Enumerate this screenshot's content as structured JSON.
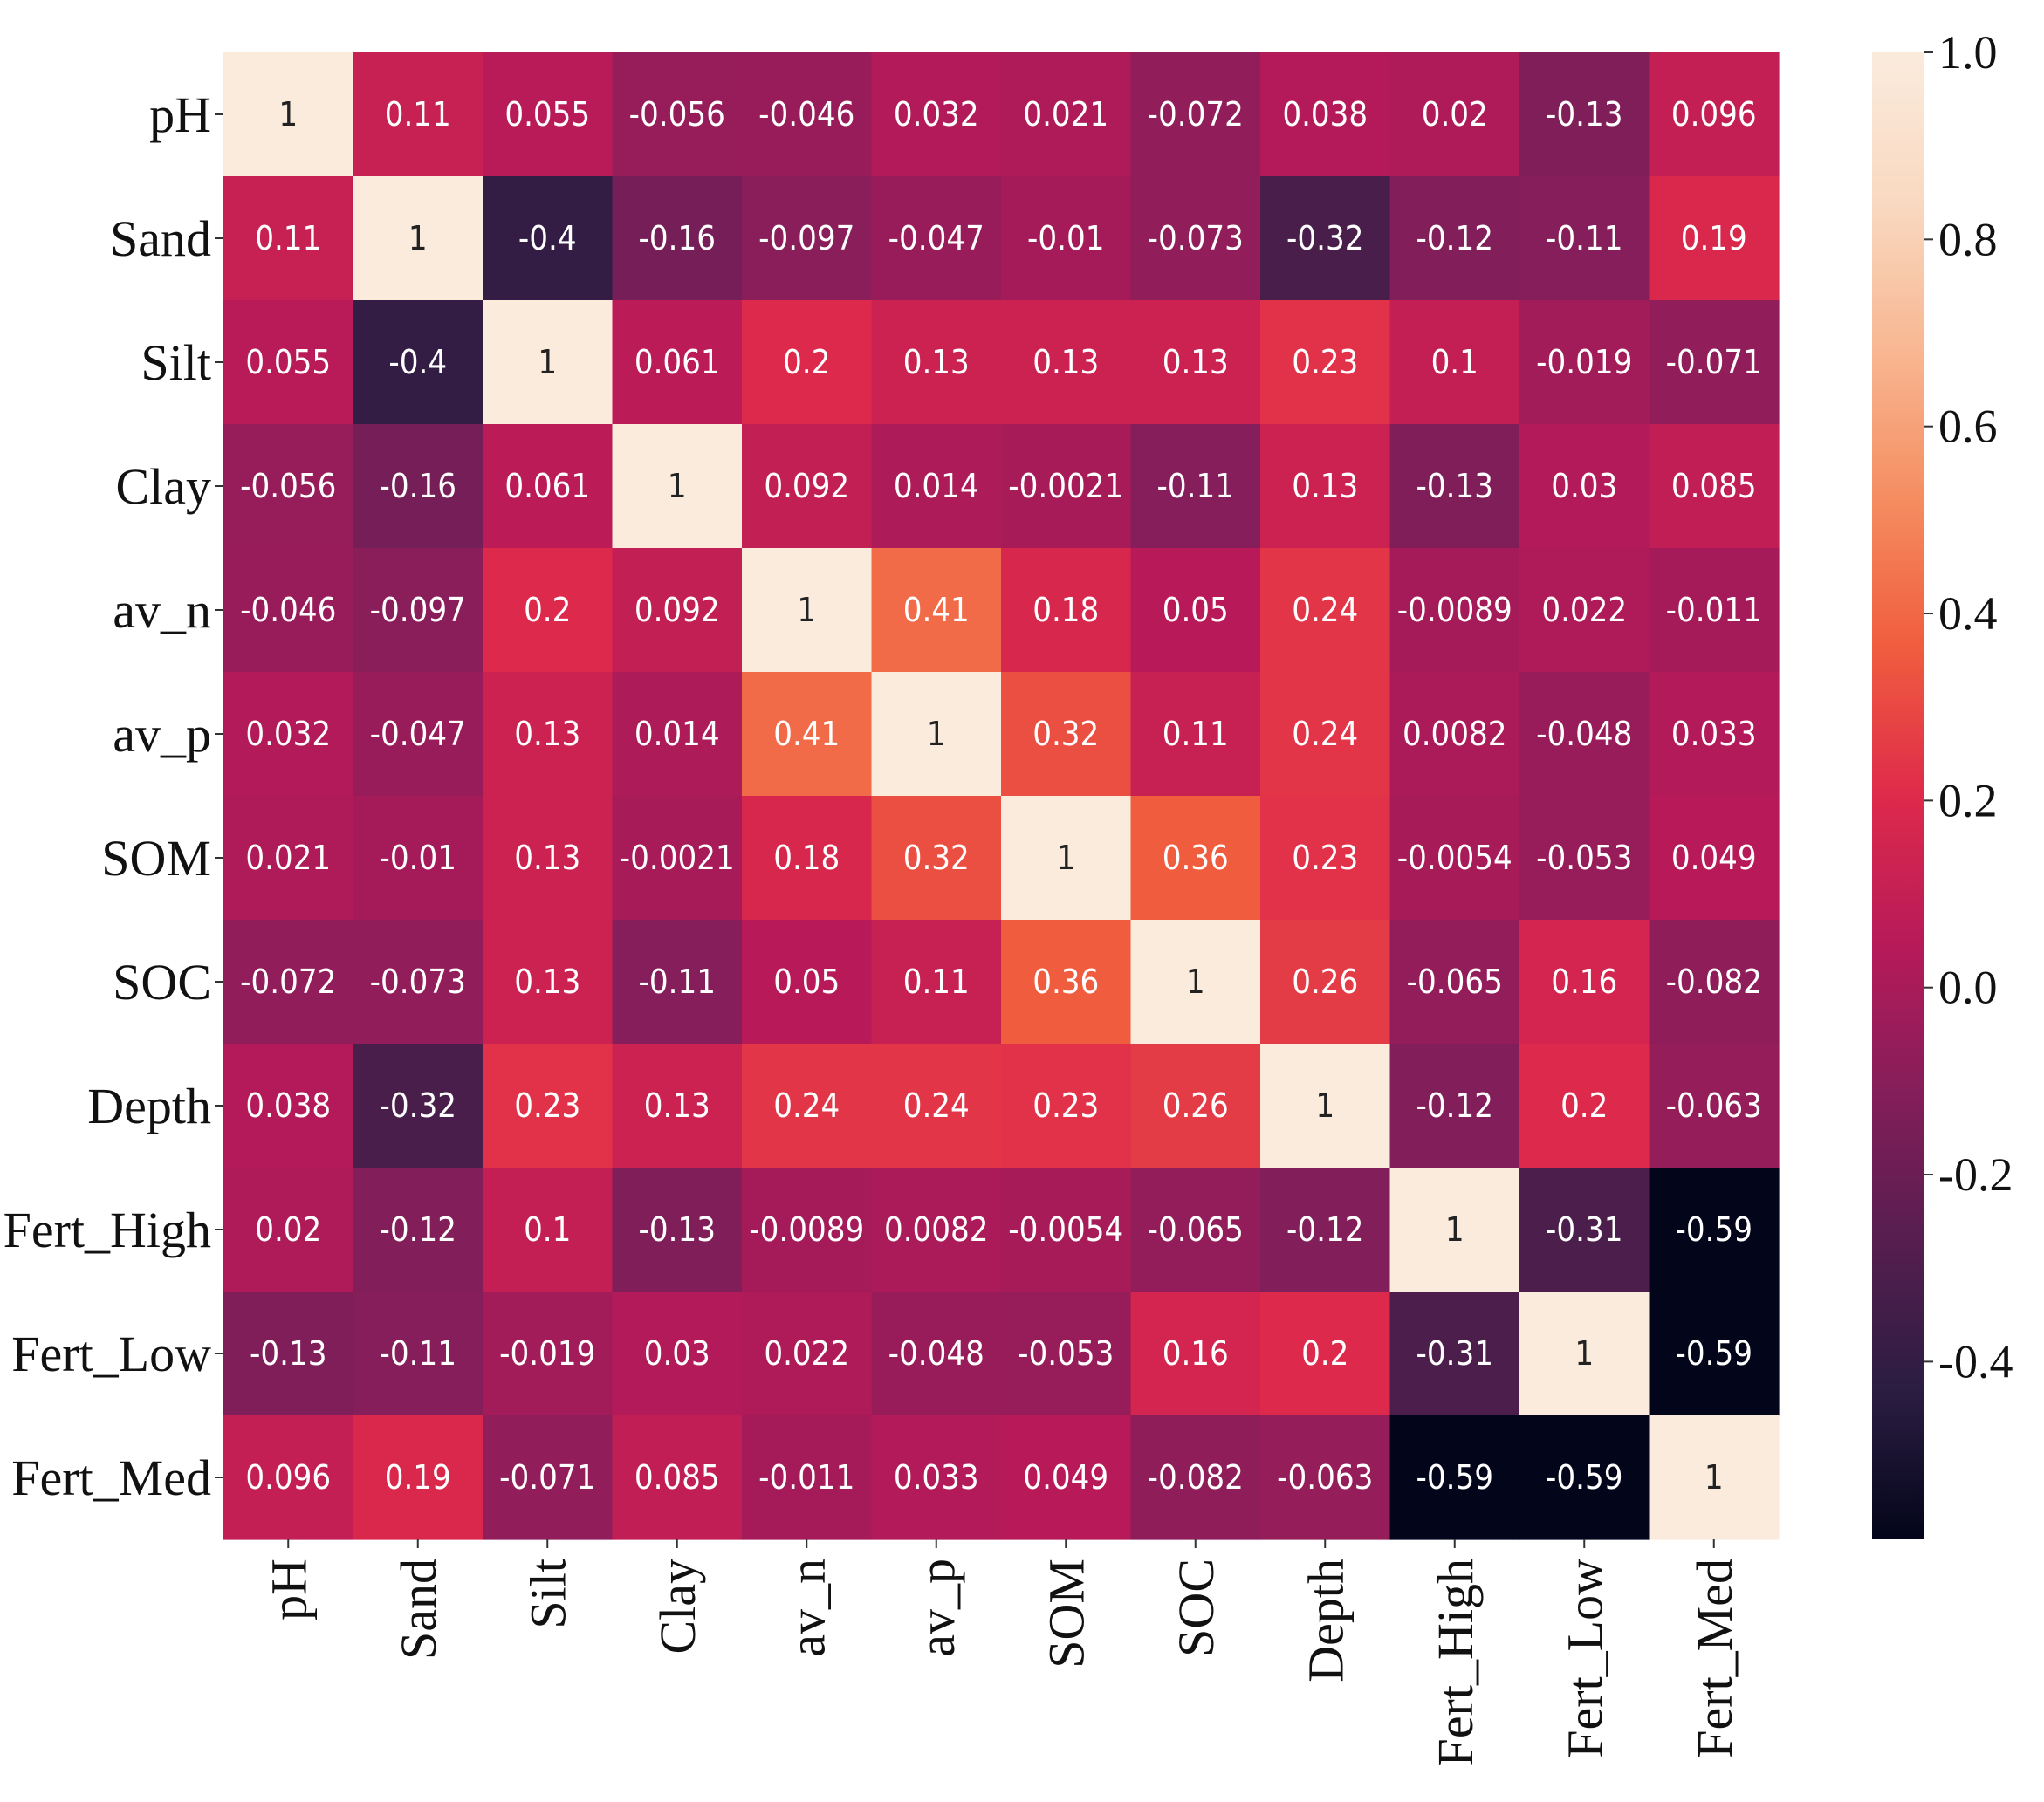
{
  "chart_data": {
    "type": "heatmap",
    "title": "",
    "xlabel": "",
    "ylabel": "",
    "labels": [
      "pH",
      "Sand",
      "Silt",
      "Clay",
      "av_n",
      "av_p",
      "SOM",
      "SOC",
      "Depth",
      "Fert_High",
      "Fert_Low",
      "Fert_Med"
    ],
    "values": [
      [
        "1",
        "0.11",
        "0.055",
        "-0.056",
        "-0.046",
        "0.032",
        "0.021",
        "-0.072",
        "0.038",
        "0.02",
        "-0.13",
        "0.096"
      ],
      [
        "0.11",
        "1",
        "-0.4",
        "-0.16",
        "-0.097",
        "-0.047",
        "-0.01",
        "-0.073",
        "-0.32",
        "-0.12",
        "-0.11",
        "0.19"
      ],
      [
        "0.055",
        "-0.4",
        "1",
        "0.061",
        "0.2",
        "0.13",
        "0.13",
        "0.13",
        "0.23",
        "0.1",
        "-0.019",
        "-0.071"
      ],
      [
        "-0.056",
        "-0.16",
        "0.061",
        "1",
        "0.092",
        "0.014",
        "-0.0021",
        "-0.11",
        "0.13",
        "-0.13",
        "0.03",
        "0.085"
      ],
      [
        "-0.046",
        "-0.097",
        "0.2",
        "0.092",
        "1",
        "0.41",
        "0.18",
        "0.05",
        "0.24",
        "-0.0089",
        "0.022",
        "-0.011"
      ],
      [
        "0.032",
        "-0.047",
        "0.13",
        "0.014",
        "0.41",
        "1",
        "0.32",
        "0.11",
        "0.24",
        "0.0082",
        "-0.048",
        "0.033"
      ],
      [
        "0.021",
        "-0.01",
        "0.13",
        "-0.0021",
        "0.18",
        "0.32",
        "1",
        "0.36",
        "0.23",
        "-0.0054",
        "-0.053",
        "0.049"
      ],
      [
        "-0.072",
        "-0.073",
        "0.13",
        "-0.11",
        "0.05",
        "0.11",
        "0.36",
        "1",
        "0.26",
        "-0.065",
        "0.16",
        "-0.082"
      ],
      [
        "0.038",
        "-0.32",
        "0.23",
        "0.13",
        "0.24",
        "0.24",
        "0.23",
        "0.26",
        "1",
        "-0.12",
        "0.2",
        "-0.063"
      ],
      [
        "0.02",
        "-0.12",
        "0.1",
        "-0.13",
        "-0.0089",
        "0.0082",
        "-0.0054",
        "-0.065",
        "-0.12",
        "1",
        "-0.31",
        "-0.59"
      ],
      [
        "-0.13",
        "-0.11",
        "-0.019",
        "0.03",
        "0.022",
        "-0.048",
        "-0.053",
        "0.16",
        "0.2",
        "-0.31",
        "1",
        "-0.59"
      ],
      [
        "0.096",
        "0.19",
        "-0.071",
        "0.085",
        "-0.011",
        "0.033",
        "0.049",
        "-0.082",
        "-0.063",
        "-0.59",
        "-0.59",
        "1"
      ]
    ],
    "colorbar": {
      "range": [
        -0.59,
        1.0
      ],
      "ticks": [
        1.0,
        0.8,
        0.6,
        0.4,
        0.2,
        0.0,
        -0.2,
        -0.4
      ],
      "tick_labels": [
        "1.0",
        "0.8",
        "0.6",
        "0.4",
        "0.2",
        "0.0",
        "-0.2",
        "-0.4"
      ]
    },
    "colormap": {
      "name": "rocket",
      "stops": [
        [
          0.0,
          "#03051a"
        ],
        [
          0.1,
          "#2b1d42"
        ],
        [
          0.2,
          "#561e4f"
        ],
        [
          0.3,
          "#841e5a"
        ],
        [
          0.4,
          "#b71a59"
        ],
        [
          0.5,
          "#de2a4b"
        ],
        [
          0.6,
          "#f05d3e"
        ],
        [
          0.7,
          "#f58d61"
        ],
        [
          0.8,
          "#f8b792"
        ],
        [
          0.9,
          "#f9d9c1"
        ],
        [
          1.0,
          "#faebdd"
        ]
      ]
    }
  }
}
